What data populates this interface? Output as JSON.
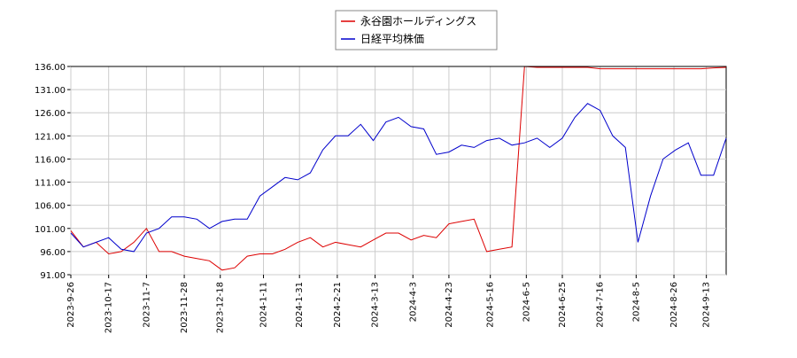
{
  "chart_data": {
    "type": "line",
    "x": [
      "2023-9-26",
      "2023-10-3",
      "2023-10-10",
      "2023-10-17",
      "2023-10-24",
      "2023-10-31",
      "2023-11-7",
      "2023-11-14",
      "2023-11-21",
      "2023-11-28",
      "2023-12-5",
      "2023-12-12",
      "2023-12-19",
      "2023-12-26",
      "2024-1-2",
      "2024-1-9",
      "2024-1-16",
      "2024-1-23",
      "2024-1-30",
      "2024-2-6",
      "2024-2-13",
      "2024-2-20",
      "2024-2-27",
      "2024-3-5",
      "2024-3-12",
      "2024-3-19",
      "2024-3-26",
      "2024-4-2",
      "2024-4-9",
      "2024-4-16",
      "2024-4-23",
      "2024-4-30",
      "2024-5-7",
      "2024-5-14",
      "2024-5-21",
      "2024-5-28",
      "2024-6-4",
      "2024-6-11",
      "2024-6-18",
      "2024-6-25",
      "2024-7-2",
      "2024-7-9",
      "2024-7-16",
      "2024-7-23",
      "2024-7-30",
      "2024-8-6",
      "2024-8-13",
      "2024-8-20",
      "2024-8-27",
      "2024-9-3",
      "2024-9-10",
      "2024-9-17",
      "2024-9-24"
    ],
    "series": [
      {
        "name": "永谷園ホールディングス",
        "color": "#dd0000",
        "values": [
          100.5,
          97,
          98,
          95.5,
          96,
          98,
          101,
          96,
          96,
          95,
          94.5,
          94,
          92,
          92.5,
          95,
          95.5,
          95.5,
          96.5,
          98,
          99,
          97,
          98,
          97.5,
          97,
          98.5,
          100,
          100,
          98.5,
          99.5,
          99,
          102,
          102.5,
          103,
          96,
          96.5,
          97,
          136,
          135.8,
          135.8,
          135.8,
          135.8,
          135.8,
          135.5,
          135.5,
          135.5,
          135.5,
          135.5,
          135.5,
          135.5,
          135.5,
          135.5,
          135.7,
          135.8
        ]
      },
      {
        "name": "日経平均株価",
        "color": "#0000cc",
        "values": [
          100,
          97,
          98,
          99,
          96.5,
          96,
          100,
          101,
          103.5,
          103.5,
          103,
          101,
          102.5,
          103,
          103,
          108,
          110,
          112,
          111.5,
          113,
          118,
          121,
          121,
          123.5,
          120,
          124,
          125,
          123,
          122.5,
          117,
          117.5,
          119,
          118.5,
          120,
          120.5,
          119,
          119.5,
          120.5,
          118.5,
          120.5,
          125,
          128,
          126.5,
          121,
          118.5,
          98,
          108,
          116,
          118,
          119.5,
          112.5,
          112.5,
          120.5
        ]
      }
    ],
    "xlim": [
      "2023-9-26",
      "2024-9-24"
    ],
    "xticks": [
      "2023-9-26",
      "2023-10-17",
      "2023-11-7",
      "2023-11-28",
      "2023-12-18",
      "2024-1-11",
      "2024-1-31",
      "2024-2-21",
      "2024-3-13",
      "2024-4-3",
      "2024-4-23",
      "2024-5-16",
      "2024-6-5",
      "2024-6-25",
      "2024-7-16",
      "2024-8-5",
      "2024-8-26",
      "2024-9-13"
    ],
    "ylim": [
      91,
      136
    ],
    "yticks": [
      {
        "value": 91,
        "label": "91.00"
      },
      {
        "value": 96,
        "label": "96.00"
      },
      {
        "value": 101,
        "label": "101.00"
      },
      {
        "value": 106,
        "label": "106.00"
      },
      {
        "value": 111,
        "label": "111.00"
      },
      {
        "value": 116,
        "label": "116.00"
      },
      {
        "value": 121,
        "label": "121.00"
      },
      {
        "value": 126,
        "label": "126.00"
      },
      {
        "value": 131,
        "label": "131.00"
      },
      {
        "value": 136,
        "label": "136.00"
      }
    ],
    "grid": true,
    "legend": "top"
  }
}
